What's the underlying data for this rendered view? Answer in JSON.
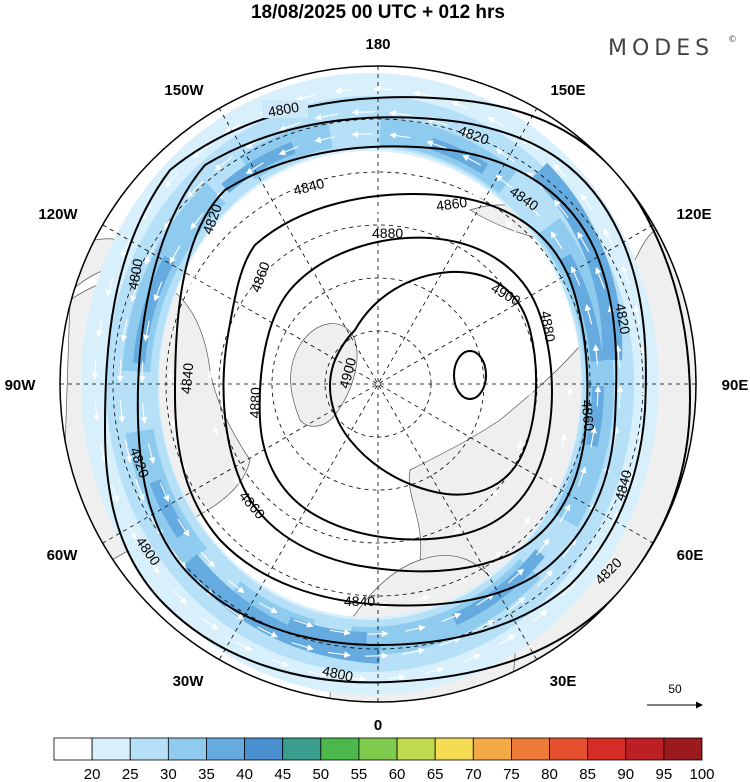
{
  "title": "18/08/2025  00 UTC  + 012 hrs",
  "brand": {
    "name": "MODES",
    "mark": "©"
  },
  "longitude_labels": [
    {
      "id": "180",
      "text": "180"
    },
    {
      "id": "150E",
      "text": "150E"
    },
    {
      "id": "120E",
      "text": "120E"
    },
    {
      "id": "90E",
      "text": "90E"
    },
    {
      "id": "60E",
      "text": "60E"
    },
    {
      "id": "30E",
      "text": "30E"
    },
    {
      "id": "0",
      "text": "0"
    },
    {
      "id": "30W",
      "text": "30W"
    },
    {
      "id": "60W",
      "text": "60W"
    },
    {
      "id": "90W",
      "text": "90W"
    },
    {
      "id": "120W",
      "text": "120W"
    },
    {
      "id": "150W",
      "text": "150W"
    }
  ],
  "contour_labels": [
    "4800",
    "4820",
    "4840",
    "4860",
    "4880",
    "4900"
  ],
  "reference_vector": {
    "label": "50"
  },
  "colorbar": {
    "ticks": [
      "20",
      "25",
      "30",
      "35",
      "40",
      "45",
      "50",
      "55",
      "60",
      "65",
      "70",
      "75",
      "80",
      "85",
      "90",
      "95",
      "100"
    ],
    "colors": [
      "#ffffff",
      "#d8effc",
      "#b5e0f7",
      "#8ecbef",
      "#66abe0",
      "#4a8fcf",
      "#3a9e8e",
      "#4cb84c",
      "#7ecb4e",
      "#c0da4e",
      "#f5dc55",
      "#f4aa45",
      "#ee7a38",
      "#e5502e",
      "#d62e26",
      "#bc1f24",
      "#9a1a1e"
    ]
  },
  "map": {
    "ocean_color": "#ffffff",
    "land_color": "#efefef",
    "wind_shades": [
      "#d8effc",
      "#b5e0f7",
      "#8ecbef",
      "#66abe0"
    ]
  }
}
